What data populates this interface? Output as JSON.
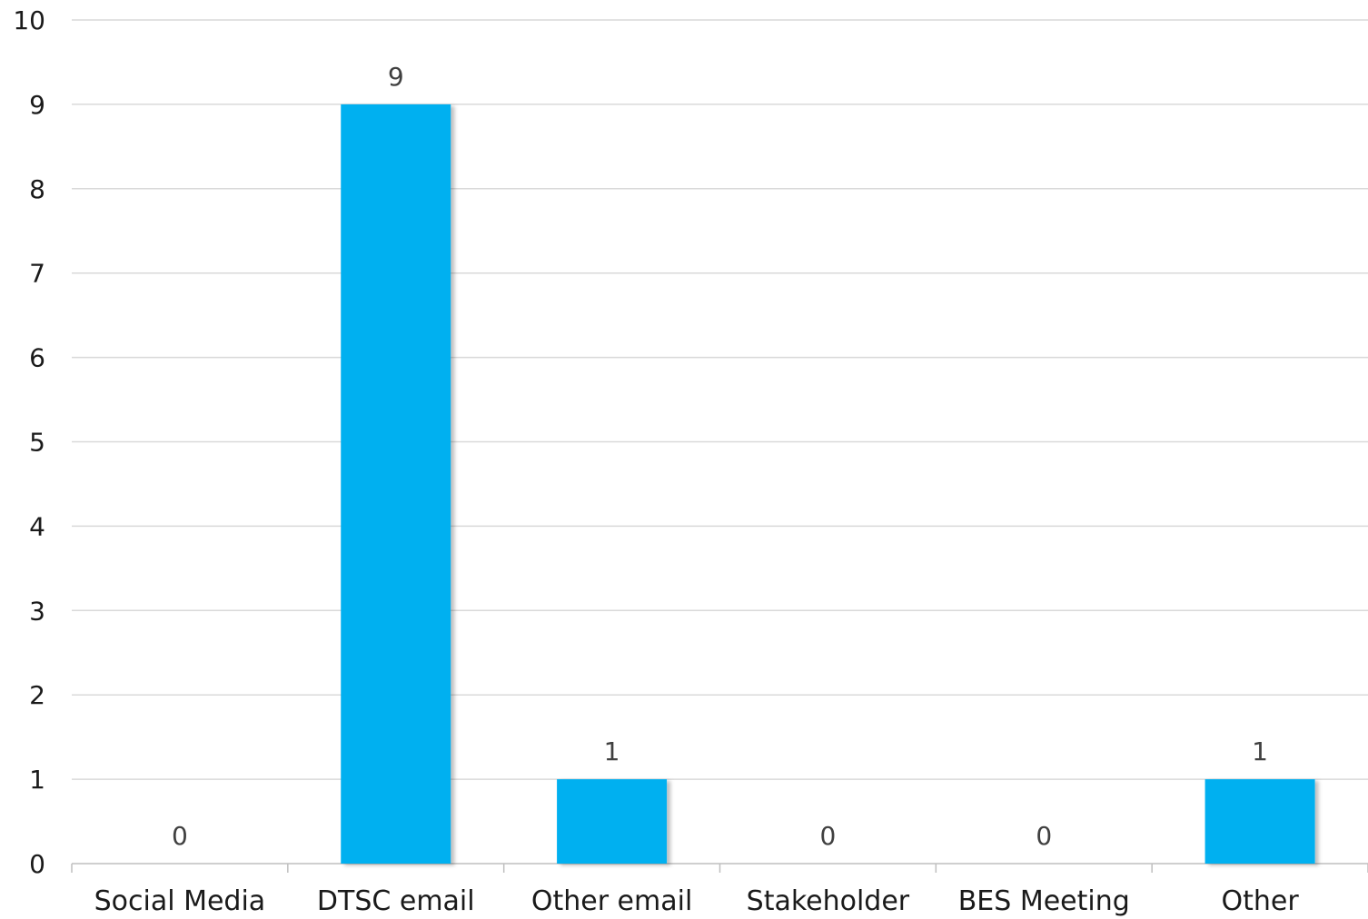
{
  "chart_data": {
    "type": "bar",
    "categories": [
      "Social Media",
      "DTSC email",
      "Other email",
      "Stakeholder",
      "BES Meeting",
      "Other"
    ],
    "values": [
      0,
      9,
      1,
      0,
      0,
      1
    ],
    "data_labels": [
      "0",
      "9",
      "1",
      "0",
      "0",
      "1"
    ],
    "y_ticks": [
      "0",
      "1",
      "2",
      "3",
      "4",
      "5",
      "6",
      "7",
      "8",
      "9",
      "10"
    ],
    "ylim": [
      0,
      10
    ],
    "title": "",
    "xlabel": "",
    "ylabel": "",
    "grid": true,
    "legend": "none",
    "bar_color": "#00B0F0",
    "grid_color": "#d9d9d9"
  }
}
